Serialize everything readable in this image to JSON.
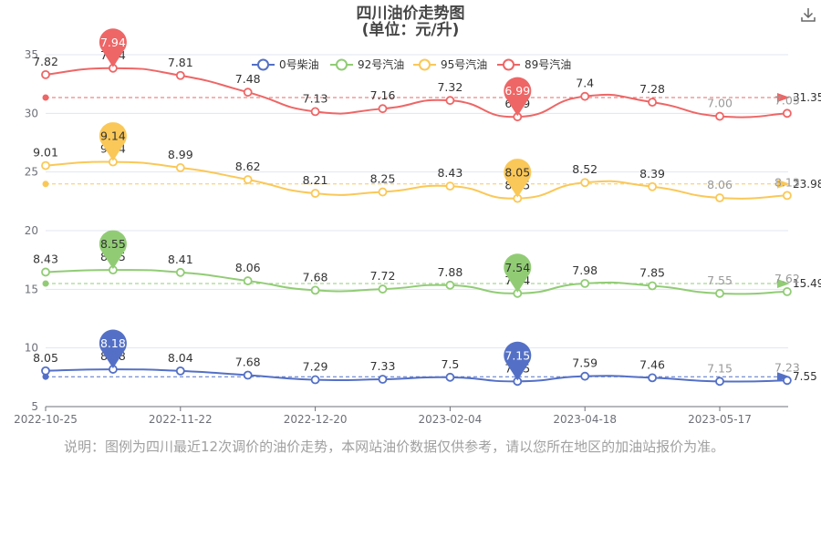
{
  "title_line1": "四川油价走势图",
  "title_line2": "(单位：元/升)",
  "note": "说明：图例为四川最近12次调价的油价走势，本网站油价数据仅供参考，请以您所在地区的加油站报价为准。",
  "icons": {
    "download": "download-icon"
  },
  "chart_data": {
    "type": "line",
    "x_tick_labels": [
      "2022-10-25",
      "2022-11-22",
      "2022-12-20",
      "2023-02-04",
      "2023-04-18",
      "2023-05-17"
    ],
    "y_ticks": [
      5,
      10,
      15,
      20,
      25,
      30,
      35
    ],
    "ylim": [
      5,
      35
    ],
    "grid": true,
    "legend_position": "top-center",
    "series": [
      {
        "name": "0号柴油",
        "color": "#5470c6",
        "values": [
          8.05,
          8.18,
          8.04,
          7.68,
          7.29,
          7.33,
          7.5,
          7.15,
          7.59,
          7.46,
          7.15,
          7.23
        ],
        "labels": [
          "8.05",
          "8.18",
          "8.04",
          "7.68",
          "7.29",
          "7.33",
          "7.5",
          "7.15",
          "7.59",
          "7.46",
          "7.15",
          "7.23"
        ],
        "plot_y": [
          8.05,
          8.18,
          8.04,
          7.68,
          7.29,
          7.33,
          7.5,
          7.15,
          7.59,
          7.46,
          7.15,
          7.23
        ],
        "max": "8.18",
        "min": "7.15",
        "average": "7.55",
        "average_y": 7.55
      },
      {
        "name": "92号汽油",
        "color": "#91cc75",
        "values": [
          8.43,
          8.55,
          8.41,
          8.06,
          7.68,
          7.72,
          7.88,
          7.54,
          7.98,
          7.85,
          7.55,
          7.62
        ],
        "labels": [
          "8.43",
          "8.55",
          "8.41",
          "8.06",
          "7.68",
          "7.72",
          "7.88",
          "7.54",
          "7.98",
          "7.85",
          "7.55",
          "7.62"
        ],
        "plot_y": [
          16.47,
          16.65,
          16.44,
          15.72,
          14.92,
          15.02,
          15.35,
          14.65,
          15.5,
          15.3,
          14.65,
          14.8
        ],
        "max": "8.55",
        "min": "7.54",
        "average": "15.49",
        "average_y": 15.49
      },
      {
        "name": "95号汽油",
        "color": "#fac858",
        "values": [
          9.01,
          9.14,
          8.99,
          8.62,
          8.21,
          8.25,
          8.43,
          8.05,
          8.52,
          8.39,
          8.06,
          8.13
        ],
        "labels": [
          "9.01",
          "9.14",
          "8.99",
          "8.62",
          "8.21",
          "8.25",
          "8.43",
          "8.05",
          "8.52",
          "8.39",
          "8.06",
          "8.13"
        ],
        "plot_y": [
          25.55,
          25.86,
          25.37,
          24.35,
          23.18,
          23.3,
          23.8,
          22.75,
          24.1,
          23.75,
          22.8,
          23.0
        ],
        "max": "9.14",
        "min": "8.05",
        "average": "23.98",
        "average_y": 23.98
      },
      {
        "name": "89号汽油",
        "color": "#ee6666",
        "values": [
          7.82,
          7.94,
          7.81,
          7.48,
          7.13,
          7.16,
          7.32,
          6.99,
          7.4,
          7.28,
          7.0,
          7.05
        ],
        "labels": [
          "7.82",
          "7.94",
          "7.81",
          "7.48",
          "7.13",
          "7.16",
          "7.32",
          "6.99",
          "7.4",
          "7.28",
          "7.00",
          "7.05"
        ],
        "plot_y": [
          33.3,
          33.85,
          33.23,
          31.8,
          30.15,
          30.4,
          31.1,
          29.7,
          31.45,
          30.95,
          29.75,
          30.0
        ],
        "max": "7.94",
        "min": "6.99",
        "average": "31.35",
        "average_y": 31.35
      }
    ]
  }
}
